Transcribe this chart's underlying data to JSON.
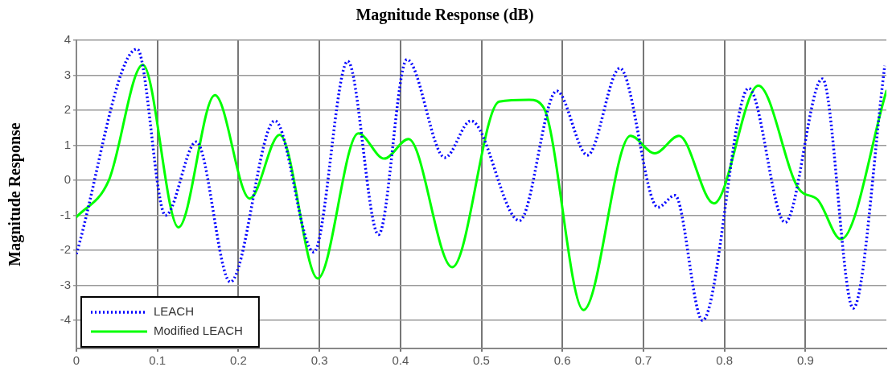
{
  "chart_data": {
    "type": "line",
    "title": "Magnitude Response (dB)",
    "ylabel": "Magnitude Response",
    "xlim": [
      0,
      1
    ],
    "xticks": [
      0,
      0.1,
      0.2,
      0.3,
      0.4,
      0.5,
      0.6,
      0.7,
      0.8,
      0.9
    ],
    "ylim": [
      -4.8,
      4
    ],
    "yticks": [
      -4,
      -3,
      -2,
      -1,
      0,
      1,
      2,
      3,
      4
    ],
    "grid": true,
    "legend": "bottom left",
    "marker": "none",
    "series": [
      {
        "name": "LEACH",
        "color": "#0000ff",
        "line_style": "dotted",
        "x": [
          0,
          0.075,
          0.11,
          0.148,
          0.19,
          0.245,
          0.293,
          0.335,
          0.373,
          0.408,
          0.455,
          0.487,
          0.547,
          0.593,
          0.631,
          0.671,
          0.718,
          0.739,
          0.773,
          0.83,
          0.875,
          0.921,
          0.959,
          0.998
        ],
        "values": [
          -2.1,
          3.75,
          -1.0,
          1.1,
          -2.9,
          1.7,
          -2.05,
          3.4,
          -1.55,
          3.45,
          0.65,
          1.7,
          -1.15,
          2.55,
          0.72,
          3.2,
          -0.77,
          -0.43,
          -4.0,
          2.63,
          -1.2,
          2.9,
          -3.65,
          3.27
        ]
      },
      {
        "name": "Modified LEACH",
        "color": "#00ff00",
        "line_style": "solid",
        "x": [
          0,
          0.04,
          0.082,
          0.126,
          0.171,
          0.214,
          0.251,
          0.298,
          0.348,
          0.38,
          0.41,
          0.464,
          0.522,
          0.559,
          0.577,
          0.626,
          0.684,
          0.714,
          0.744,
          0.787,
          0.842,
          0.892,
          0.915,
          0.944,
          1.0
        ],
        "values": [
          -1.05,
          0.0,
          3.3,
          -1.34,
          2.43,
          -0.52,
          1.3,
          -2.8,
          1.34,
          0.62,
          1.18,
          -2.48,
          2.25,
          2.3,
          2.07,
          -3.7,
          1.27,
          0.77,
          1.27,
          -0.66,
          2.7,
          -0.25,
          -0.55,
          -1.68,
          2.55
        ]
      }
    ]
  }
}
